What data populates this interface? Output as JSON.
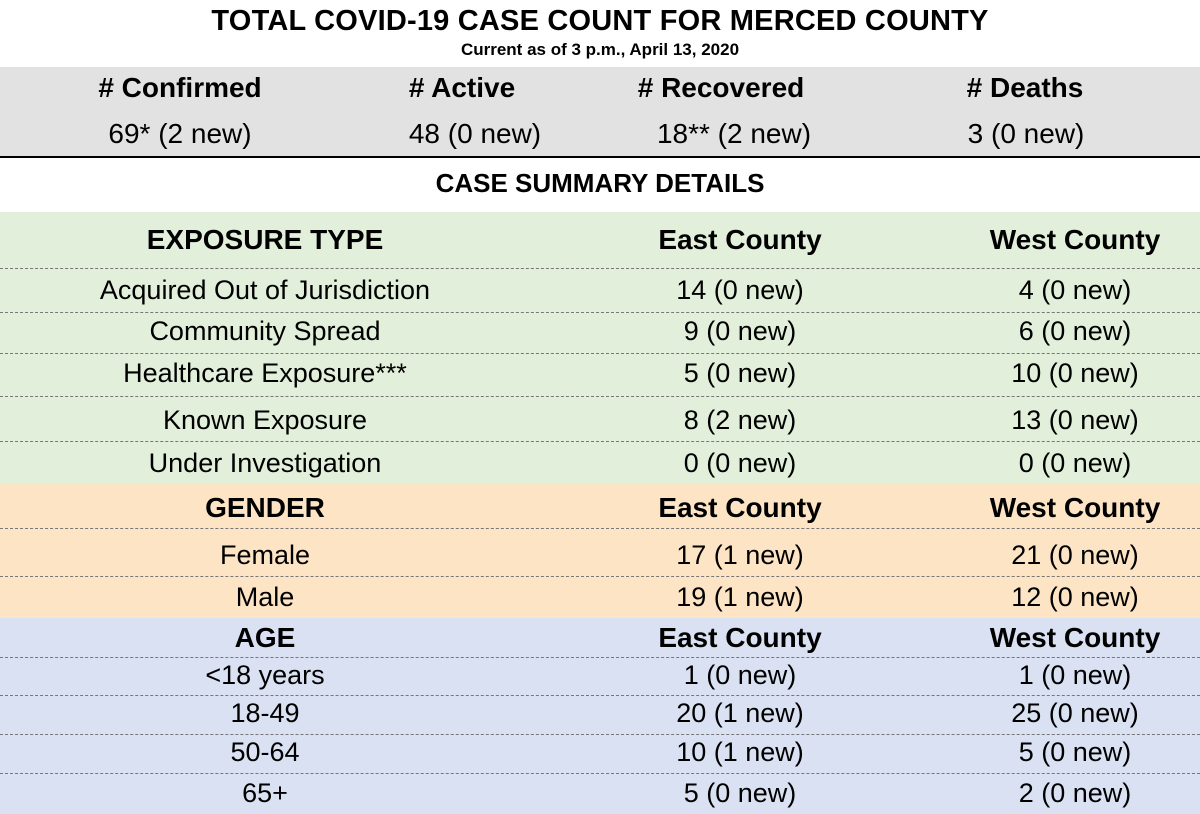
{
  "title": "TOTAL COVID-19 CASE COUNT FOR MERCED COUNTY",
  "subtitle": "Current as of 3 p.m., April 13, 2020",
  "totals": [
    {
      "label": "# Confirmed",
      "value": "69* (2 new)"
    },
    {
      "label": "# Active",
      "value": "48 (0 new)"
    },
    {
      "label": "# Recovered",
      "value": "18** (2 new)"
    },
    {
      "label": "# Deaths",
      "value": "3 (0 new)"
    }
  ],
  "summary_title": "CASE SUMMARY DETAILS",
  "exposure": {
    "header": [
      "EXPOSURE TYPE",
      "East County",
      "West County"
    ],
    "rows": [
      [
        "Acquired Out of Jurisdiction",
        "14 (0 new)",
        "4 (0 new)"
      ],
      [
        "Community Spread",
        "9 (0 new)",
        "6 (0 new)"
      ],
      [
        "Healthcare Exposure***",
        "5 (0 new)",
        "10 (0 new)"
      ],
      [
        "Known Exposure",
        "8 (2 new)",
        "13 (0 new)"
      ],
      [
        "Under Investigation",
        "0 (0 new)",
        "0 (0 new)"
      ]
    ]
  },
  "gender": {
    "header": [
      "GENDER",
      "East County",
      "West County"
    ],
    "rows": [
      [
        "Female",
        "17 (1 new)",
        "21 (0 new)"
      ],
      [
        "Male",
        "19 (1 new)",
        "12 (0 new)"
      ]
    ]
  },
  "age": {
    "header": [
      "AGE",
      "East County",
      "West County"
    ],
    "rows": [
      [
        "<18 years",
        "1 (0 new)",
        "1 (0 new)"
      ],
      [
        "18-49",
        "20 (1 new)",
        "25 (0 new)"
      ],
      [
        "50-64",
        "10 (1 new)",
        "5 (0 new)"
      ],
      [
        "65+",
        "5 (0 new)",
        "2 (0 new)"
      ]
    ]
  },
  "colors": {
    "totals_bg": "#e2e2e2",
    "exposure_bg": "#e2efda",
    "gender_bg": "#fce4c4",
    "age_bg": "#d9e1f2"
  }
}
